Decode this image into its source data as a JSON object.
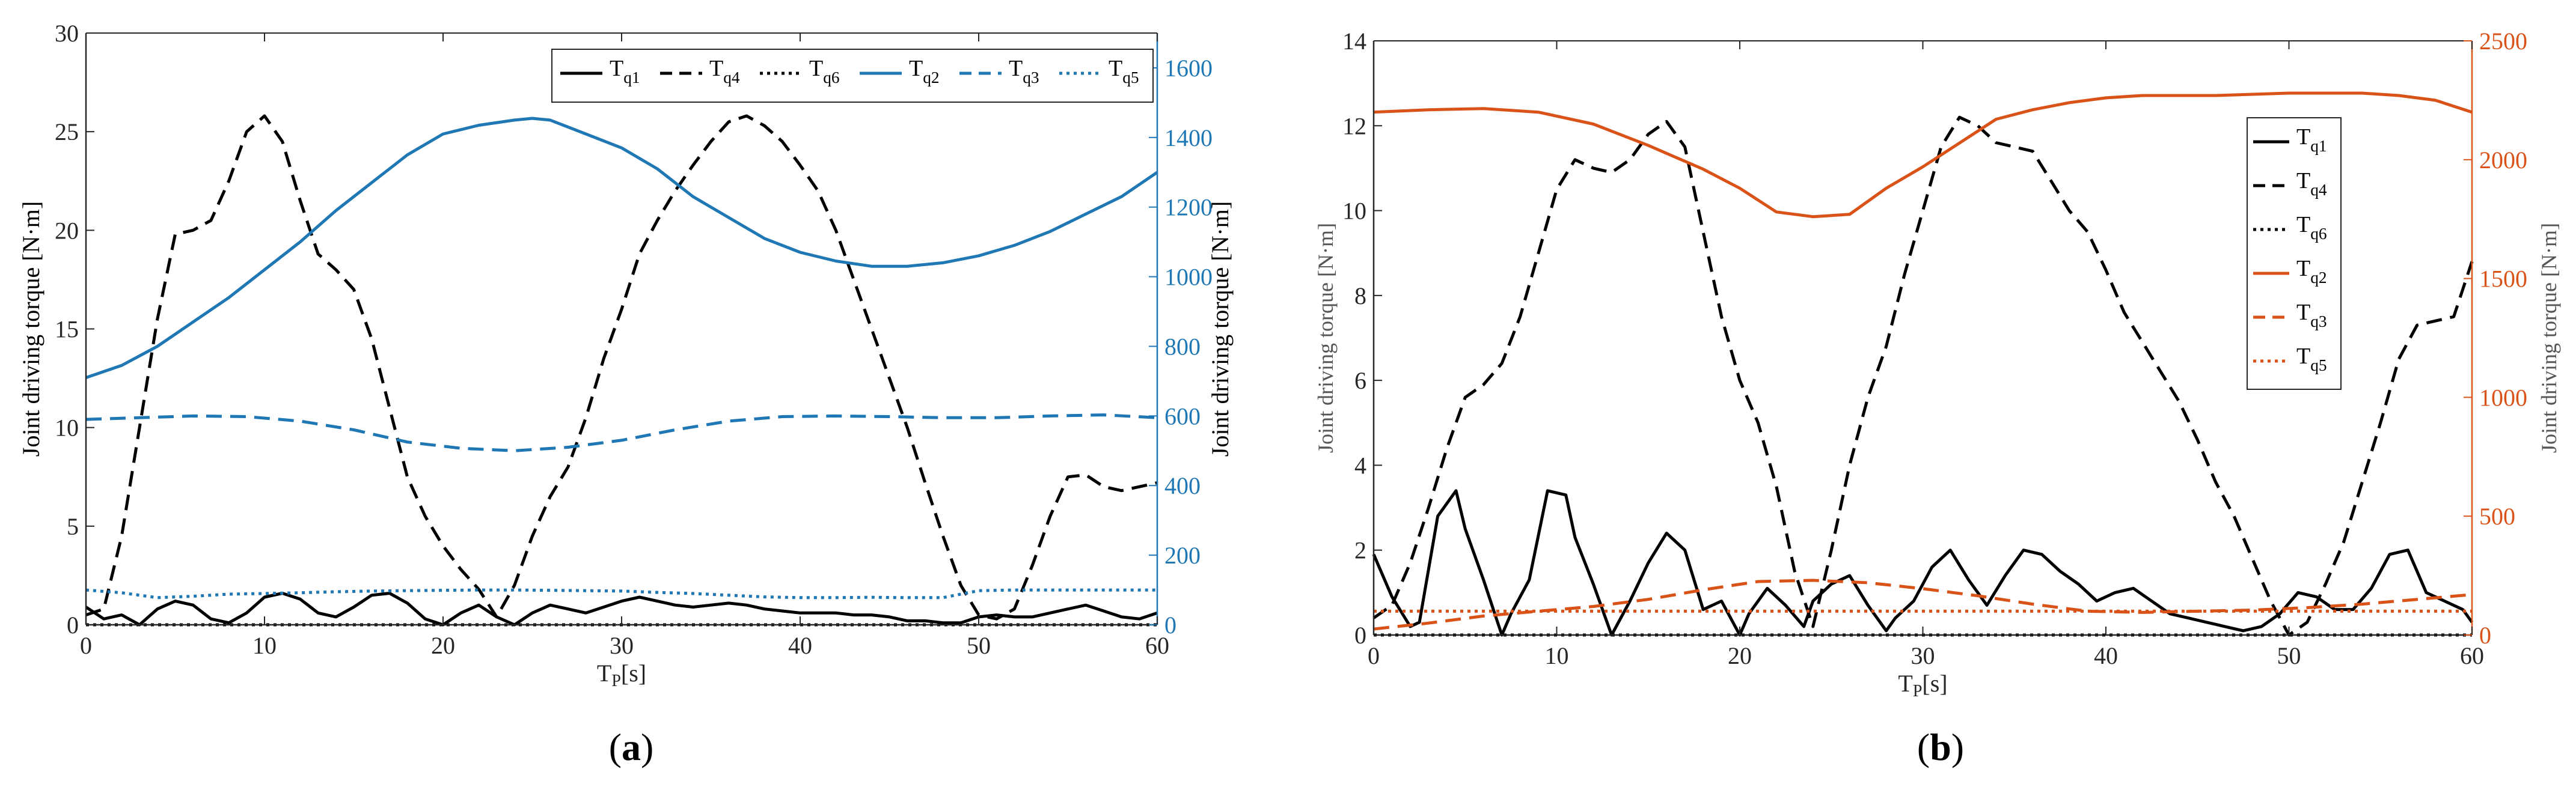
{
  "figure": {
    "panel_a_label_prefix": "(",
    "panel_a_label_letter": "a",
    "panel_a_label_suffix": ")",
    "panel_b_label_prefix": "(",
    "panel_b_label_letter": "b",
    "panel_b_label_suffix": ")"
  },
  "chart_data": [
    {
      "id": "a",
      "type": "line",
      "xlabel_main": "T",
      "xlabel_sub": "P",
      "xlabel_unit": "[s]",
      "ylabel_left": "Joint driving torque [N·m]",
      "ylabel_right": "Joint driving torque [N·m]",
      "xlim": [
        0,
        60
      ],
      "ylim_left": [
        0,
        30
      ],
      "ylim_right": [
        0,
        1700
      ],
      "xticks": [
        0,
        10,
        20,
        30,
        40,
        50,
        60
      ],
      "yticks_left": [
        0,
        5,
        10,
        15,
        20,
        25,
        30
      ],
      "yticks_right": [
        0,
        200,
        400,
        600,
        800,
        1000,
        1200,
        1400,
        1600
      ],
      "colors": {
        "left_axis": "#000000",
        "right_axis": "#1f77b4"
      },
      "legend_position": "top-right horizontal",
      "series": [
        {
          "name": "T",
          "sub": "q1",
          "axis": "left",
          "color": "#000000",
          "dash": "solid",
          "x": [
            0,
            1,
            2,
            3,
            4,
            5,
            6,
            7,
            8,
            9,
            10,
            11,
            12,
            13,
            14,
            15,
            16,
            17,
            18,
            19,
            20,
            21,
            22,
            23,
            24,
            25,
            26,
            27,
            28,
            29,
            30,
            31,
            32,
            33,
            34,
            35,
            36,
            37,
            38,
            39,
            40,
            41,
            42,
            43,
            44,
            45,
            46,
            47,
            48,
            49,
            50,
            51,
            52,
            53,
            54,
            55,
            56,
            57,
            58,
            59,
            60
          ],
          "values": [
            0.9,
            0.3,
            0.5,
            0.0,
            0.8,
            1.2,
            1.0,
            0.3,
            0.1,
            0.6,
            1.4,
            1.6,
            1.3,
            0.6,
            0.4,
            0.9,
            1.5,
            1.6,
            1.1,
            0.3,
            0.0,
            0.6,
            1.0,
            0.4,
            0.0,
            0.6,
            1.0,
            0.8,
            0.6,
            0.9,
            1.2,
            1.4,
            1.2,
            1.0,
            0.9,
            1.0,
            1.1,
            1.0,
            0.8,
            0.7,
            0.6,
            0.6,
            0.6,
            0.5,
            0.5,
            0.4,
            0.2,
            0.2,
            0.1,
            0.1,
            0.4,
            0.5,
            0.4,
            0.4,
            0.6,
            0.8,
            1.0,
            0.7,
            0.4,
            0.3,
            0.6
          ]
        },
        {
          "name": "T",
          "sub": "q4",
          "axis": "left",
          "color": "#000000",
          "dash": "dashed",
          "x": [
            0,
            1,
            2,
            3,
            4,
            5,
            6,
            7,
            8,
            9,
            10,
            11,
            12,
            13,
            14,
            15,
            16,
            17,
            18,
            19,
            20,
            21,
            22,
            23,
            24,
            25,
            26,
            27,
            28,
            29,
            30,
            31,
            32,
            33,
            34,
            35,
            36,
            37,
            38,
            39,
            40,
            41,
            42,
            43,
            44,
            45,
            46,
            47,
            48,
            49,
            50,
            51,
            52,
            53,
            54,
            55,
            56,
            57,
            58,
            59,
            60
          ],
          "values": [
            0.5,
            0.8,
            4.5,
            10.0,
            15.5,
            19.8,
            20.0,
            20.5,
            22.5,
            25.0,
            25.8,
            24.5,
            21.5,
            18.8,
            18.0,
            17.0,
            14.5,
            11.0,
            7.5,
            5.5,
            4.0,
            2.8,
            1.8,
            0.4,
            2.0,
            4.5,
            6.5,
            8.0,
            10.5,
            13.5,
            16.0,
            18.8,
            20.5,
            22.0,
            23.3,
            24.5,
            25.5,
            25.8,
            25.3,
            24.5,
            23.3,
            22.0,
            20.0,
            17.5,
            15.0,
            12.5,
            10.0,
            7.2,
            4.5,
            2.0,
            0.5,
            0.3,
            0.8,
            3.0,
            5.5,
            7.5,
            7.6,
            7.0,
            6.8,
            7.0,
            7.2
          ]
        },
        {
          "name": "T",
          "sub": "q6",
          "axis": "left",
          "color": "#000000",
          "dash": "dotted",
          "x": [
            0,
            60
          ],
          "values": [
            0.0,
            0.0
          ]
        },
        {
          "name": "T",
          "sub": "q2",
          "axis": "right",
          "color": "#1f77b4",
          "dash": "solid",
          "x": [
            0,
            2,
            4,
            6,
            8,
            10,
            12,
            14,
            16,
            18,
            20,
            22,
            24,
            25,
            26,
            28,
            30,
            32,
            34,
            36,
            38,
            40,
            42,
            44,
            46,
            48,
            50,
            52,
            54,
            56,
            58,
            60
          ],
          "values": [
            710,
            745,
            800,
            870,
            940,
            1020,
            1100,
            1190,
            1270,
            1350,
            1410,
            1435,
            1450,
            1455,
            1450,
            1410,
            1370,
            1310,
            1230,
            1170,
            1110,
            1070,
            1045,
            1030,
            1030,
            1040,
            1060,
            1090,
            1130,
            1180,
            1230,
            1300
          ]
        },
        {
          "name": "T",
          "sub": "q3",
          "axis": "right",
          "color": "#1f77b4",
          "dash": "dashed",
          "x": [
            0,
            3,
            6,
            9,
            12,
            15,
            18,
            21,
            24,
            27,
            30,
            33,
            36,
            39,
            42,
            45,
            48,
            51,
            54,
            57,
            60
          ],
          "values": [
            590,
            595,
            600,
            598,
            585,
            560,
            525,
            507,
            500,
            510,
            530,
            560,
            585,
            598,
            600,
            598,
            595,
            595,
            600,
            603,
            595
          ]
        },
        {
          "name": "T",
          "sub": "q5",
          "axis": "right",
          "color": "#1f77b4",
          "dash": "dotted",
          "x": [
            0,
            2,
            4,
            6,
            8,
            10,
            12,
            14,
            16,
            18,
            20,
            22,
            24,
            26,
            28,
            30,
            32,
            34,
            36,
            38,
            40,
            42,
            44,
            46,
            48,
            50,
            52,
            54,
            56,
            58,
            60
          ],
          "values": [
            100,
            92,
            78,
            82,
            88,
            90,
            92,
            95,
            97,
            98,
            99,
            100,
            100,
            99,
            98,
            97,
            93,
            90,
            85,
            80,
            78,
            78,
            79,
            78,
            78,
            98,
            100,
            100,
            100,
            100,
            100
          ]
        }
      ]
    },
    {
      "id": "b",
      "type": "line",
      "xlabel_main": "T",
      "xlabel_sub": "P",
      "xlabel_unit": "[s]",
      "ylabel_left": "Joint driving torque [N·m]",
      "ylabel_right": "Joint driving torque [N·m]",
      "xlim": [
        0,
        60
      ],
      "ylim_left": [
        0,
        14
      ],
      "ylim_right": [
        0,
        2500
      ],
      "xticks": [
        0,
        10,
        20,
        30,
        40,
        50,
        60
      ],
      "yticks_left": [
        0,
        2,
        4,
        6,
        8,
        10,
        12,
        14
      ],
      "yticks_right": [
        0,
        500,
        1000,
        1500,
        2000,
        2500
      ],
      "colors": {
        "left_axis": "#000000",
        "right_axis": "#d95319"
      },
      "legend_position": "upper-right vertical",
      "series": [
        {
          "name": "T",
          "sub": "q1",
          "axis": "left",
          "color": "#000000",
          "dash": "solid",
          "x": [
            0,
            1,
            2,
            2.5,
            3.5,
            4.5,
            5,
            6,
            7,
            7.5,
            8.5,
            9.5,
            10.5,
            11,
            12,
            13,
            14,
            15,
            16,
            17,
            18,
            19,
            20,
            20.5,
            21.5,
            22.5,
            23.5,
            24,
            25,
            26,
            27,
            28,
            28.5,
            29.5,
            30.5,
            31.5,
            32.5,
            33.5,
            34.5,
            35.5,
            36.5,
            37.5,
            38.5,
            39.5,
            40.5,
            41.5,
            42.5,
            43.5,
            44.5,
            45.5,
            46.5,
            47.5,
            48.5,
            49.5,
            50.5,
            51.5,
            52.5,
            53.5,
            54.5,
            55.5,
            56.5,
            57.5,
            58.5,
            59.5,
            60
          ],
          "values": [
            1.9,
            0.9,
            0.2,
            0.3,
            2.8,
            3.4,
            2.5,
            1.3,
            0.0,
            0.5,
            1.3,
            3.4,
            3.3,
            2.3,
            1.2,
            0.0,
            0.8,
            1.7,
            2.4,
            2.0,
            0.6,
            0.8,
            0.0,
            0.5,
            1.1,
            0.7,
            0.2,
            0.8,
            1.2,
            1.4,
            0.7,
            0.1,
            0.4,
            0.8,
            1.6,
            2.0,
            1.3,
            0.7,
            1.4,
            2.0,
            1.9,
            1.5,
            1.2,
            0.8,
            1.0,
            1.1,
            0.8,
            0.5,
            0.4,
            0.3,
            0.2,
            0.1,
            0.2,
            0.5,
            1.0,
            0.9,
            0.6,
            0.6,
            1.1,
            1.9,
            2.0,
            1.0,
            0.8,
            0.6,
            0.3
          ]
        },
        {
          "name": "T",
          "sub": "q4",
          "axis": "left",
          "color": "#000000",
          "dash": "dashed",
          "x": [
            0,
            1,
            2,
            3,
            4,
            5,
            6,
            7,
            8,
            9,
            10,
            11,
            12,
            13,
            14,
            15,
            16,
            17,
            18,
            19,
            20,
            21,
            22,
            23,
            24,
            25,
            26,
            27,
            28,
            29,
            30,
            31,
            32,
            33,
            34,
            35,
            36,
            37,
            38,
            39,
            40,
            41,
            42,
            43,
            44,
            45,
            46,
            47,
            48,
            49,
            50,
            51,
            52,
            53,
            54,
            55,
            56,
            57,
            58,
            59,
            60
          ],
          "values": [
            0.4,
            0.7,
            1.7,
            3.0,
            4.4,
            5.6,
            5.9,
            6.4,
            7.5,
            9.0,
            10.5,
            11.2,
            11.0,
            10.9,
            11.2,
            11.8,
            12.1,
            11.5,
            9.5,
            7.5,
            6.0,
            5.0,
            3.5,
            1.5,
            0.2,
            2.0,
            4.0,
            5.6,
            6.8,
            8.5,
            10.0,
            11.5,
            12.2,
            12.0,
            11.6,
            11.5,
            11.4,
            10.7,
            10.0,
            9.5,
            8.6,
            7.6,
            6.9,
            6.2,
            5.5,
            4.6,
            3.6,
            2.8,
            1.8,
            0.8,
            0.0,
            0.3,
            1.2,
            2.2,
            3.6,
            5.0,
            6.5,
            7.3,
            7.4,
            7.5,
            8.8
          ]
        },
        {
          "name": "T",
          "sub": "q6",
          "axis": "left",
          "color": "#000000",
          "dash": "dotted",
          "x": [
            0,
            60
          ],
          "values": [
            0.0,
            0.0
          ]
        },
        {
          "name": "T",
          "sub": "q2",
          "axis": "right",
          "color": "#d95319",
          "dash": "solid",
          "x": [
            0,
            3,
            6,
            9,
            12,
            15,
            18,
            20,
            22,
            24,
            26,
            28,
            30,
            32,
            34,
            36,
            38,
            40,
            42,
            44,
            46,
            48,
            50,
            52,
            54,
            56,
            58,
            60
          ],
          "values": [
            2200,
            2210,
            2215,
            2200,
            2150,
            2060,
            1960,
            1880,
            1780,
            1760,
            1770,
            1880,
            1970,
            2070,
            2170,
            2210,
            2240,
            2260,
            2270,
            2270,
            2270,
            2275,
            2280,
            2280,
            2280,
            2270,
            2250,
            2200
          ]
        },
        {
          "name": "T",
          "sub": "q3",
          "axis": "right",
          "color": "#d95319",
          "dash": "dashed",
          "x": [
            0,
            3,
            6,
            9,
            12,
            15,
            18,
            21,
            24,
            27,
            30,
            33,
            36,
            39,
            42,
            45,
            48,
            51,
            54,
            57,
            60
          ],
          "values": [
            25,
            50,
            80,
            100,
            120,
            150,
            190,
            225,
            230,
            220,
            195,
            165,
            130,
            100,
            95,
            100,
            105,
            115,
            130,
            150,
            170
          ]
        },
        {
          "name": "T",
          "sub": "q5",
          "axis": "right",
          "color": "#d95319",
          "dash": "dotted",
          "x": [
            0,
            60
          ],
          "values": [
            100,
            100
          ]
        }
      ]
    }
  ]
}
